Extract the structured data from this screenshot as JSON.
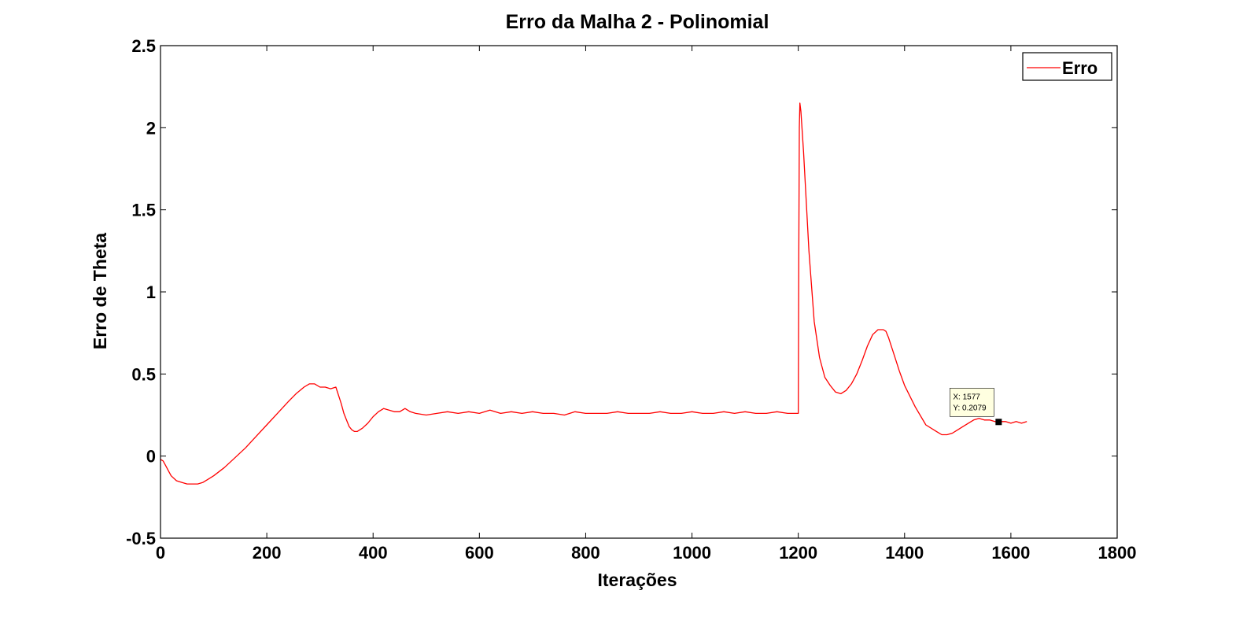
{
  "chart_data": {
    "type": "line",
    "title": "Erro da Malha 2 - Polinomial",
    "xlabel": "Iterações",
    "ylabel": "Erro de Theta",
    "xlim": [
      0,
      1800
    ],
    "ylim": [
      -0.5,
      2.5
    ],
    "xticks": [
      "0",
      "200",
      "400",
      "600",
      "800",
      "1000",
      "1200",
      "1400",
      "1600",
      "1800"
    ],
    "yticks": [
      "-0.5",
      "0",
      "0.5",
      "1",
      "1.5",
      "2",
      "2.5"
    ],
    "grid": false,
    "legend_position": "top-right",
    "series": [
      {
        "name": "Erro",
        "color": "#ff0000",
        "x": [
          0,
          5,
          10,
          15,
          20,
          30,
          40,
          50,
          60,
          70,
          80,
          90,
          100,
          120,
          140,
          160,
          180,
          200,
          220,
          240,
          255,
          270,
          280,
          290,
          300,
          310,
          320,
          330,
          340,
          345,
          350,
          355,
          360,
          365,
          370,
          380,
          390,
          400,
          410,
          420,
          430,
          440,
          450,
          460,
          470,
          480,
          500,
          520,
          540,
          560,
          580,
          600,
          620,
          640,
          660,
          680,
          700,
          720,
          740,
          760,
          780,
          800,
          820,
          840,
          860,
          880,
          900,
          920,
          940,
          960,
          980,
          1000,
          1020,
          1040,
          1060,
          1080,
          1100,
          1120,
          1140,
          1160,
          1180,
          1195,
          1200,
          1201,
          1202,
          1203,
          1205,
          1210,
          1215,
          1220,
          1230,
          1240,
          1250,
          1260,
          1270,
          1280,
          1290,
          1300,
          1310,
          1320,
          1330,
          1340,
          1350,
          1360,
          1365,
          1370,
          1380,
          1390,
          1400,
          1420,
          1440,
          1460,
          1470,
          1480,
          1490,
          1500,
          1510,
          1520,
          1530,
          1540,
          1550,
          1560,
          1570,
          1580,
          1590,
          1600,
          1610,
          1620,
          1630
        ],
        "y": [
          -0.02,
          -0.03,
          -0.06,
          -0.09,
          -0.12,
          -0.15,
          -0.16,
          -0.17,
          -0.17,
          -0.17,
          -0.16,
          -0.14,
          -0.12,
          -0.07,
          -0.01,
          0.05,
          0.12,
          0.19,
          0.26,
          0.33,
          0.38,
          0.42,
          0.44,
          0.44,
          0.42,
          0.42,
          0.41,
          0.42,
          0.32,
          0.26,
          0.22,
          0.18,
          0.16,
          0.15,
          0.15,
          0.17,
          0.2,
          0.24,
          0.27,
          0.29,
          0.28,
          0.27,
          0.27,
          0.29,
          0.27,
          0.26,
          0.25,
          0.26,
          0.27,
          0.26,
          0.27,
          0.26,
          0.28,
          0.26,
          0.27,
          0.26,
          0.27,
          0.26,
          0.26,
          0.25,
          0.27,
          0.26,
          0.26,
          0.26,
          0.27,
          0.26,
          0.26,
          0.26,
          0.27,
          0.26,
          0.26,
          0.27,
          0.26,
          0.26,
          0.27,
          0.26,
          0.27,
          0.26,
          0.26,
          0.27,
          0.26,
          0.26,
          0.26,
          1.2,
          2.0,
          2.15,
          2.1,
          1.85,
          1.55,
          1.25,
          0.82,
          0.6,
          0.48,
          0.43,
          0.39,
          0.38,
          0.4,
          0.44,
          0.5,
          0.58,
          0.67,
          0.74,
          0.77,
          0.77,
          0.76,
          0.72,
          0.62,
          0.52,
          0.43,
          0.3,
          0.19,
          0.15,
          0.13,
          0.13,
          0.14,
          0.16,
          0.18,
          0.2,
          0.22,
          0.23,
          0.22,
          0.22,
          0.21,
          0.21,
          0.21,
          0.2,
          0.21,
          0.2,
          0.21
        ]
      }
    ],
    "annotations": [
      {
        "type": "datatip",
        "x": 1577,
        "y": 0.2079,
        "label_x": "X: 1577",
        "label_y": "Y: 0.2079"
      }
    ]
  }
}
